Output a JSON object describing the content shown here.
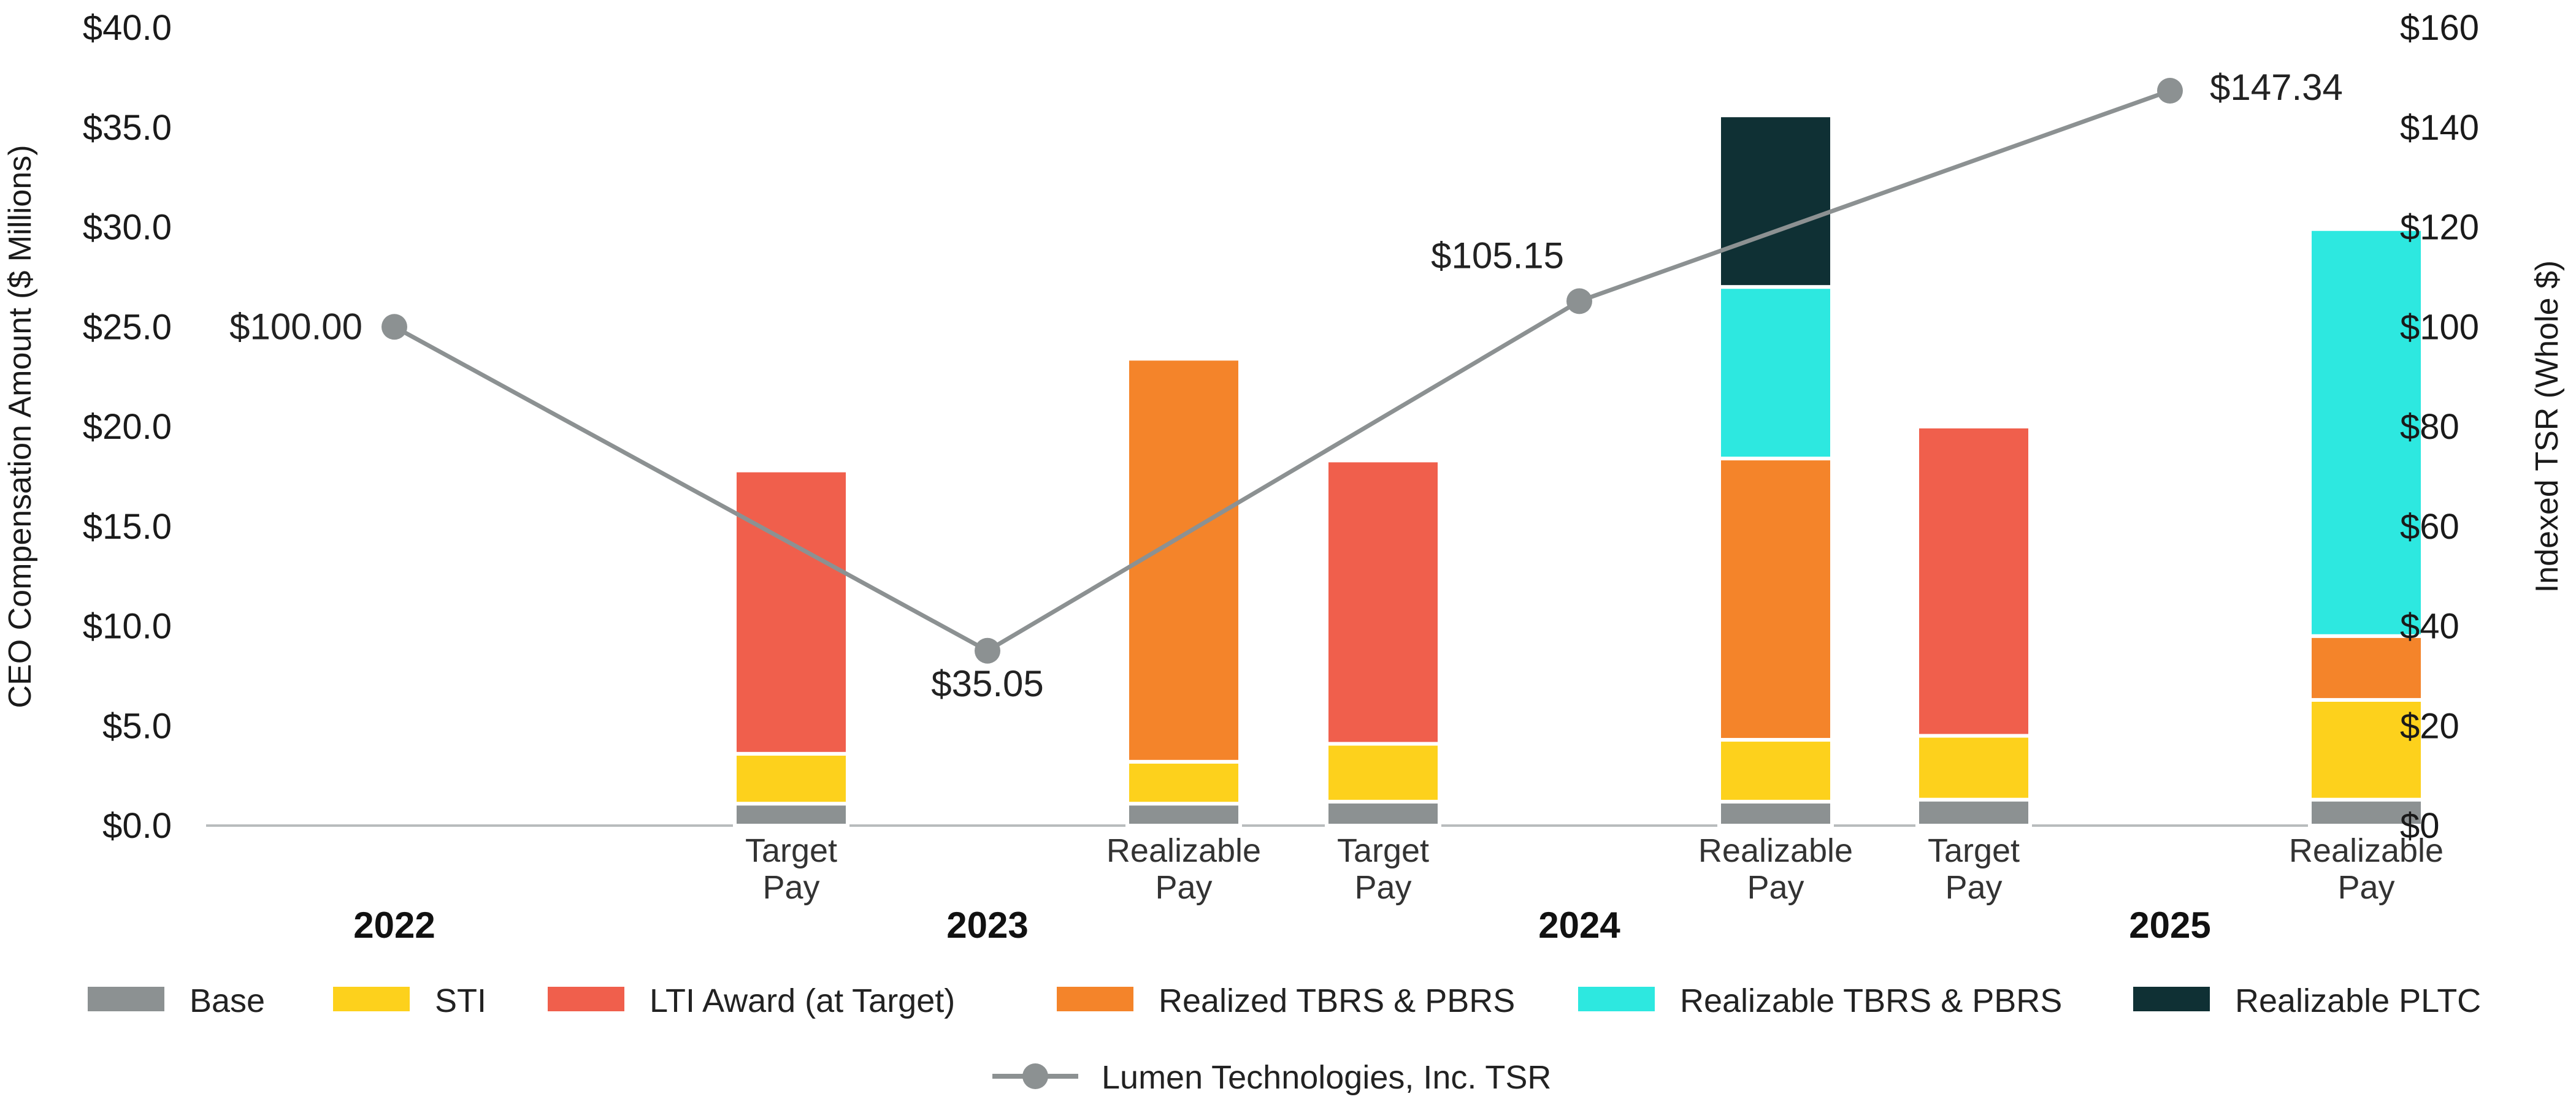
{
  "chart_data": {
    "type": "stacked-bar-with-line",
    "left_axis": {
      "title": "CEO Compensation Amount ($ Millions)",
      "min": 0,
      "max": 40,
      "step": 5,
      "tick_labels": [
        "$0.0",
        "$5.0",
        "$10.0",
        "$15.0",
        "$20.0",
        "$25.0",
        "$30.0",
        "$35.0",
        "$40.0"
      ]
    },
    "right_axis": {
      "title": "Indexed TSR (Whole $)",
      "min": 0,
      "max": 160,
      "step": 20,
      "tick_labels": [
        "$0",
        "$20",
        "$40",
        "$60",
        "$80",
        "$100",
        "$120",
        "$140",
        "$160"
      ]
    },
    "series": [
      {
        "key": "base",
        "name": "Base",
        "color": "#8c9192"
      },
      {
        "key": "sti",
        "name": "STI",
        "color": "#fdd11c"
      },
      {
        "key": "lti",
        "name": "LTI Award (at Target)",
        "color": "#f05f4c"
      },
      {
        "key": "realized",
        "name": "Realized TBRS & PBRS",
        "color": "#f4842a"
      },
      {
        "key": "realizable",
        "name": "Realizable TBRS & PBRS",
        "color": "#2de8e0"
      },
      {
        "key": "pltc",
        "name": "Realizable PLTC",
        "color": "#0f3034"
      }
    ],
    "years": [
      {
        "year": "2022",
        "bars": []
      },
      {
        "year": "2023",
        "bars": [
          {
            "label": [
              "Target",
              "Pay"
            ],
            "segments": {
              "base": 1.1,
              "sti": 2.5,
              "lti": 14.2
            }
          },
          {
            "label": [
              "Realizable",
              "Pay"
            ],
            "segments": {
              "base": 1.1,
              "sti": 2.1,
              "realized": 20.2
            }
          }
        ]
      },
      {
        "year": "2024",
        "bars": [
          {
            "label": [
              "Target",
              "Pay"
            ],
            "segments": {
              "base": 1.2,
              "sti": 2.9,
              "lti": 14.2
            }
          },
          {
            "label": [
              "Realizable",
              "Pay"
            ],
            "segments": {
              "base": 1.2,
              "sti": 3.1,
              "realized": 14.1,
              "realizable": 8.6,
              "pltc": 8.6
            }
          }
        ]
      },
      {
        "year": "2025",
        "bars": [
          {
            "label": [
              "Target",
              "Pay"
            ],
            "segments": {
              "base": 1.3,
              "sti": 3.2,
              "lti": 15.5
            }
          },
          {
            "label": [
              "Realizable",
              "Pay"
            ],
            "segments": {
              "base": 1.3,
              "sti": 5.0,
              "realized": 3.2,
              "realizable": 20.4
            }
          }
        ]
      }
    ],
    "tsr_line": {
      "name": "Lumen Technologies, Inc. TSR",
      "color": "#8c9192",
      "points": [
        {
          "year": "2022",
          "value": 100.0,
          "label": "$100.00"
        },
        {
          "year": "2023",
          "value": 35.05,
          "label": "$35.05"
        },
        {
          "year": "2024",
          "value": 105.15,
          "label": "$105.15"
        },
        {
          "year": "2025",
          "value": 147.34,
          "label": "$147.34"
        }
      ]
    }
  }
}
